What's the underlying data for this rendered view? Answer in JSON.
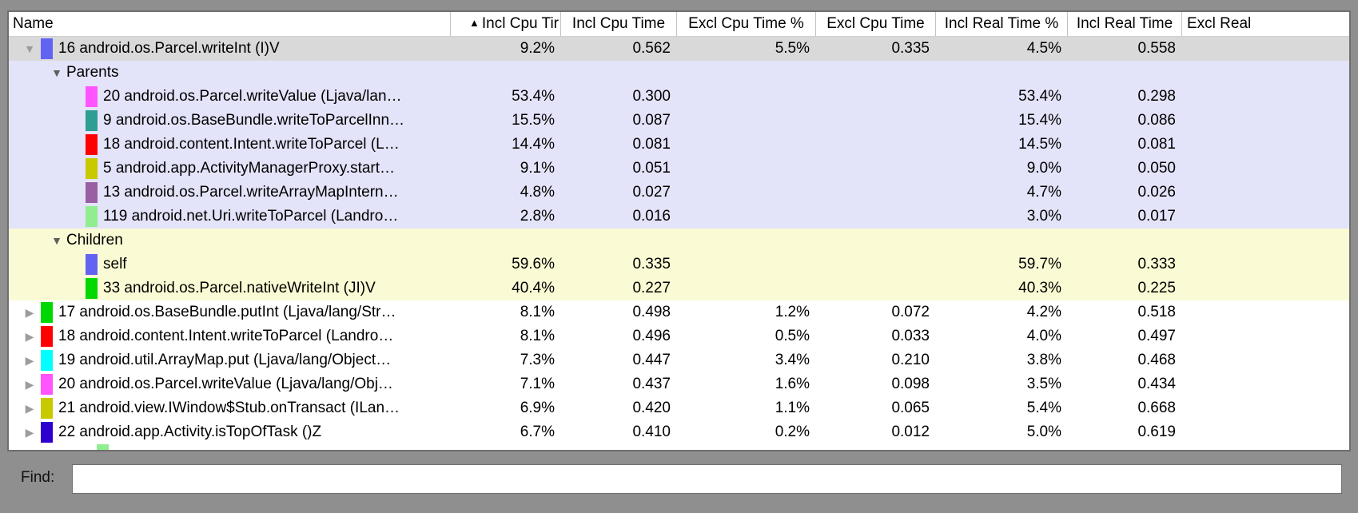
{
  "table": {
    "sort_icon": "▲",
    "expand_down_icon": "▼",
    "expand_right_icon": "▶",
    "columns": [
      {
        "id": "name",
        "label": "Name"
      },
      {
        "id": "incl_cpu_pct",
        "label": "Incl Cpu Tir",
        "sorted": true
      },
      {
        "id": "incl_cpu_time",
        "label": "Incl Cpu Time"
      },
      {
        "id": "excl_cpu_pct",
        "label": "Excl Cpu Time %"
      },
      {
        "id": "excl_cpu_time",
        "label": "Excl Cpu Time"
      },
      {
        "id": "incl_real_pct",
        "label": "Incl Real Time %"
      },
      {
        "id": "incl_real_time",
        "label": "Incl Real Time"
      },
      {
        "id": "excl_real",
        "label": "Excl Real"
      }
    ],
    "rows": [
      {
        "kind": "row",
        "level": "top",
        "expand": "down",
        "chip": "#6363f3",
        "bg": "selected",
        "name": "16 android.os.Parcel.writeInt (I)V",
        "values": [
          "9.2%",
          "0.562",
          "5.5%",
          "0.335",
          "4.5%",
          "0.558",
          ""
        ]
      },
      {
        "kind": "section",
        "bg": "lavender",
        "name": "Parents"
      },
      {
        "kind": "row",
        "level": "sub",
        "chip": "#ff54ff",
        "bg": "lavender",
        "name": "20 android.os.Parcel.writeValue (Ljava/lan…",
        "values": [
          "53.4%",
          "0.300",
          "",
          "",
          "53.4%",
          "0.298",
          ""
        ]
      },
      {
        "kind": "row",
        "level": "sub",
        "chip": "#2e9d93",
        "bg": "lavender",
        "name": "9 android.os.BaseBundle.writeToParcelInn…",
        "values": [
          "15.5%",
          "0.087",
          "",
          "",
          "15.4%",
          "0.086",
          ""
        ]
      },
      {
        "kind": "row",
        "level": "sub",
        "chip": "#ff0000",
        "bg": "lavender",
        "name": "18 android.content.Intent.writeToParcel (L…",
        "values": [
          "14.4%",
          "0.081",
          "",
          "",
          "14.5%",
          "0.081",
          ""
        ]
      },
      {
        "kind": "row",
        "level": "sub",
        "chip": "#c9c900",
        "bg": "lavender",
        "name": "5 android.app.ActivityManagerProxy.start…",
        "values": [
          "9.1%",
          "0.051",
          "",
          "",
          "9.0%",
          "0.050",
          ""
        ]
      },
      {
        "kind": "row",
        "level": "sub",
        "chip": "#9a5fa2",
        "bg": "lavender",
        "name": "13 android.os.Parcel.writeArrayMapIntern…",
        "values": [
          "4.8%",
          "0.027",
          "",
          "",
          "4.7%",
          "0.026",
          ""
        ]
      },
      {
        "kind": "row",
        "level": "sub",
        "chip": "#90ee90",
        "bg": "lavender",
        "name": "119 android.net.Uri.writeToParcel (Landro…",
        "values": [
          "2.8%",
          "0.016",
          "",
          "",
          "3.0%",
          "0.017",
          ""
        ]
      },
      {
        "kind": "section",
        "bg": "cream",
        "name": "Children"
      },
      {
        "kind": "row",
        "level": "sub",
        "chip": "#6363f3",
        "bg": "cream",
        "name": "self",
        "values": [
          "59.6%",
          "0.335",
          "",
          "",
          "59.7%",
          "0.333",
          ""
        ]
      },
      {
        "kind": "row",
        "level": "sub",
        "chip": "#00d800",
        "bg": "cream",
        "name": "33 android.os.Parcel.nativeWriteInt (JI)V",
        "values": [
          "40.4%",
          "0.227",
          "",
          "",
          "40.3%",
          "0.225",
          ""
        ]
      },
      {
        "kind": "row",
        "level": "top",
        "expand": "right",
        "chip": "#00d800",
        "bg": "white",
        "name": "17 android.os.BaseBundle.putInt (Ljava/lang/Str…",
        "values": [
          "8.1%",
          "0.498",
          "1.2%",
          "0.072",
          "4.2%",
          "0.518",
          ""
        ]
      },
      {
        "kind": "row",
        "level": "top",
        "expand": "right",
        "chip": "#ff0000",
        "bg": "white",
        "name": "18 android.content.Intent.writeToParcel (Landro…",
        "values": [
          "8.1%",
          "0.496",
          "0.5%",
          "0.033",
          "4.0%",
          "0.497",
          ""
        ]
      },
      {
        "kind": "row",
        "level": "top",
        "expand": "right",
        "chip": "#00ffff",
        "bg": "white",
        "name": "19 android.util.ArrayMap.put (Ljava/lang/Object…",
        "values": [
          "7.3%",
          "0.447",
          "3.4%",
          "0.210",
          "3.8%",
          "0.468",
          ""
        ]
      },
      {
        "kind": "row",
        "level": "top",
        "expand": "right",
        "chip": "#ff54ff",
        "bg": "white",
        "name": "20 android.os.Parcel.writeValue (Ljava/lang/Obj…",
        "values": [
          "7.1%",
          "0.437",
          "1.6%",
          "0.098",
          "3.5%",
          "0.434",
          ""
        ]
      },
      {
        "kind": "row",
        "level": "top",
        "expand": "right",
        "chip": "#c9c900",
        "bg": "white",
        "name": "21 android.view.IWindow$Stub.onTransact (ILan…",
        "values": [
          "6.9%",
          "0.420",
          "1.1%",
          "0.065",
          "5.4%",
          "0.668",
          ""
        ]
      },
      {
        "kind": "row",
        "level": "top",
        "expand": "right",
        "chip": "#2d00d0",
        "bg": "white",
        "name": "22 android.app.Activity.isTopOfTask ()Z",
        "values": [
          "6.7%",
          "0.410",
          "0.2%",
          "0.012",
          "5.0%",
          "0.619",
          ""
        ]
      },
      {
        "kind": "sliver",
        "chip": "#90ee90",
        "bg": "white"
      }
    ]
  },
  "find": {
    "label": "Find:",
    "value": ""
  },
  "colors": {
    "window_bg": "#8f8f8f",
    "selected_row_bg": "#d9d9d9",
    "parents_section_bg": "#e3e3f9",
    "children_section_bg": "#fafad4",
    "header_separator": "#c2c2c2"
  }
}
